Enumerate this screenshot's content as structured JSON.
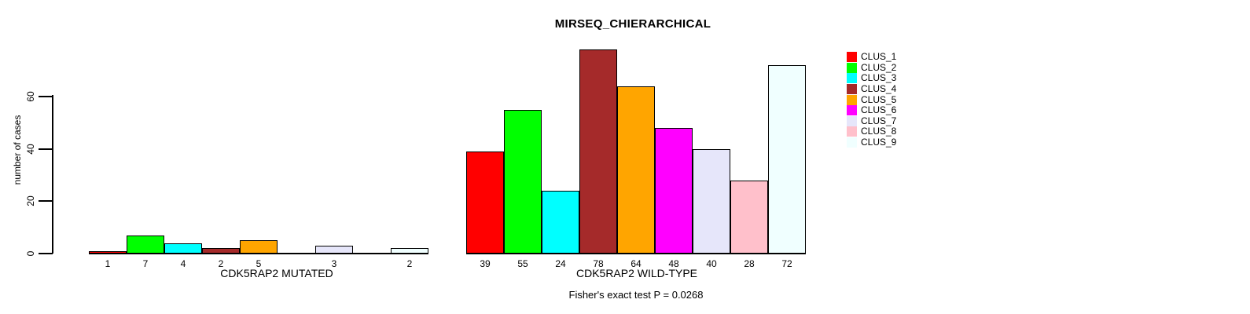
{
  "figure": {
    "background": "#FFFFFF"
  },
  "chart_data": {
    "type": "bar",
    "title": "MIRSEQ_CHIERARCHICAL",
    "ylabel": "number of cases",
    "xlabels": [
      "CDK5RAP2 MUTATED",
      "CDK5RAP2 WILD-TYPE"
    ],
    "yticks": [
      0,
      20,
      40,
      60
    ],
    "ylim": [
      0,
      78
    ],
    "grid": false,
    "legend_position": "right-outside",
    "bar_value_labels": "values shown under each nonzero bar",
    "annotation": "Fisher's exact test P = 0.0268",
    "series": [
      {
        "name": "CLUS_1",
        "color": "#FF0000",
        "values": [
          1,
          39
        ]
      },
      {
        "name": "CLUS_2",
        "color": "#00FF00",
        "values": [
          7,
          55
        ]
      },
      {
        "name": "CLUS_3",
        "color": "#00FFFF",
        "values": [
          4,
          24
        ]
      },
      {
        "name": "CLUS_4",
        "color": "#A52A2A",
        "values": [
          2,
          78
        ]
      },
      {
        "name": "CLUS_5",
        "color": "#FFA500",
        "values": [
          5,
          64
        ]
      },
      {
        "name": "CLUS_6",
        "color": "#FF00FF",
        "values": [
          0,
          48
        ]
      },
      {
        "name": "CLUS_7",
        "color": "#E6E6FA",
        "values": [
          3,
          40
        ]
      },
      {
        "name": "CLUS_8",
        "color": "#FFC0CB",
        "values": [
          0,
          28
        ]
      },
      {
        "name": "CLUS_9",
        "color": "#F0FFFF",
        "values": [
          2,
          72
        ]
      }
    ]
  }
}
